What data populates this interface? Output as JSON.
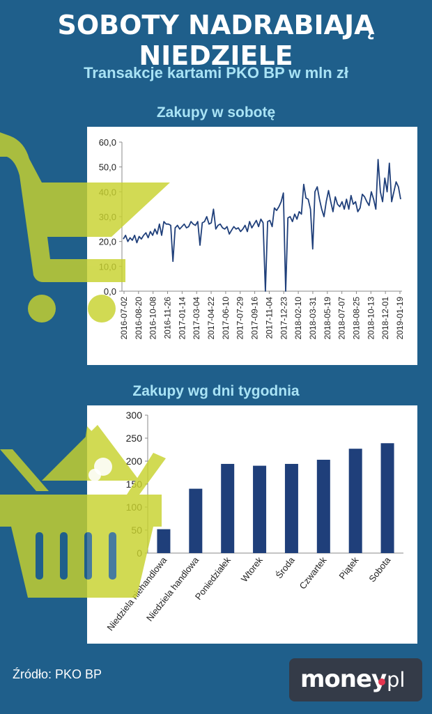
{
  "header": {
    "title": "SOBOTY NADRABIAJĄ NIEDZIELE",
    "subtitle": "Transakcje kartami PKO BP w mln zł"
  },
  "source": "Źródło: PKO BP",
  "logo": {
    "main": "money",
    "suffix": "pl"
  },
  "colors": {
    "background": "#1f5f8b",
    "series": "#1f3f7a",
    "accent": "#c8d22e",
    "title_light": "#a9e3f5"
  },
  "icons": [
    "shopping-cart-icon",
    "shopping-basket-icon"
  ],
  "chart_data": [
    {
      "type": "line",
      "title": "Zakupy w sobotę",
      "ylim": [
        0,
        60
      ],
      "yticks": [
        "0,0",
        "10,0",
        "20,0",
        "30,0",
        "40,0",
        "50,0",
        "60,0"
      ],
      "xticks": [
        "2016-07-02",
        "2016-08-20",
        "2016-10-08",
        "2016-11-26",
        "2017-01-14",
        "2017-03-04",
        "2017-04-22",
        "2017-06-10",
        "2017-07-29",
        "2017-09-16",
        "2017-11-04",
        "2017-12-23",
        "2018-02-10",
        "2018-03-31",
        "2018-05-19",
        "2018-07-07",
        "2018-08-25",
        "2018-10-13",
        "2018-12-01",
        "2019-01-19"
      ],
      "x_start": "2016-07-02",
      "x_end": "2019-01-19",
      "grid": false,
      "values": [
        21.0,
        22.5,
        20.0,
        21.5,
        20.5,
        22.5,
        19.5,
        22.0,
        21.0,
        22.5,
        23.5,
        21.5,
        24.0,
        22.5,
        25.0,
        23.0,
        27.0,
        22.5,
        28.0,
        27.0,
        27.0,
        26.5,
        12.0,
        25.5,
        26.5,
        25.0,
        26.0,
        27.0,
        25.5,
        26.0,
        28.0,
        27.0,
        26.5,
        28.0,
        18.5,
        27.5,
        28.0,
        30.0,
        27.0,
        27.5,
        33.0,
        25.0,
        26.5,
        27.0,
        25.5,
        25.0,
        26.0,
        23.0,
        24.5,
        26.0,
        25.0,
        25.5,
        24.0,
        25.0,
        26.5,
        24.0,
        28.0,
        25.5,
        27.0,
        28.5,
        26.0,
        29.0,
        27.5,
        0.0,
        28.0,
        28.5,
        26.0,
        33.5,
        32.5,
        34.0,
        36.0,
        39.5,
        0.0,
        29.5,
        30.0,
        28.0,
        31.0,
        29.0,
        32.0,
        31.0,
        43.0,
        37.5,
        37.0,
        33.0,
        17.0,
        40.0,
        42.0,
        37.0,
        33.0,
        30.0,
        36.0,
        40.5,
        36.0,
        32.0,
        38.0,
        35.0,
        34.0,
        36.0,
        33.0,
        37.0,
        33.0,
        38.5,
        35.0,
        36.0,
        32.0,
        33.5,
        39.0,
        38.0,
        36.0,
        34.5,
        40.0,
        37.0,
        33.0,
        53.0,
        40.0,
        36.0,
        45.5,
        40.0,
        51.5,
        36.0,
        40.0,
        44.0,
        42.0,
        37.0
      ]
    },
    {
      "type": "bar",
      "title": "Zakupy wg dni tygodnia",
      "ylim": [
        0,
        300
      ],
      "yticks": [
        "0",
        "50",
        "100",
        "150",
        "200",
        "250",
        "300"
      ],
      "categories": [
        "Niedziela niehandlowa",
        "Niedziela handlowa",
        "Poniedziałek",
        "Wtorek",
        "Środa",
        "Czwartek",
        "Piątek",
        "Sobota"
      ],
      "values": [
        52,
        140,
        194,
        190,
        194,
        203,
        227,
        239
      ],
      "grid": false
    }
  ]
}
